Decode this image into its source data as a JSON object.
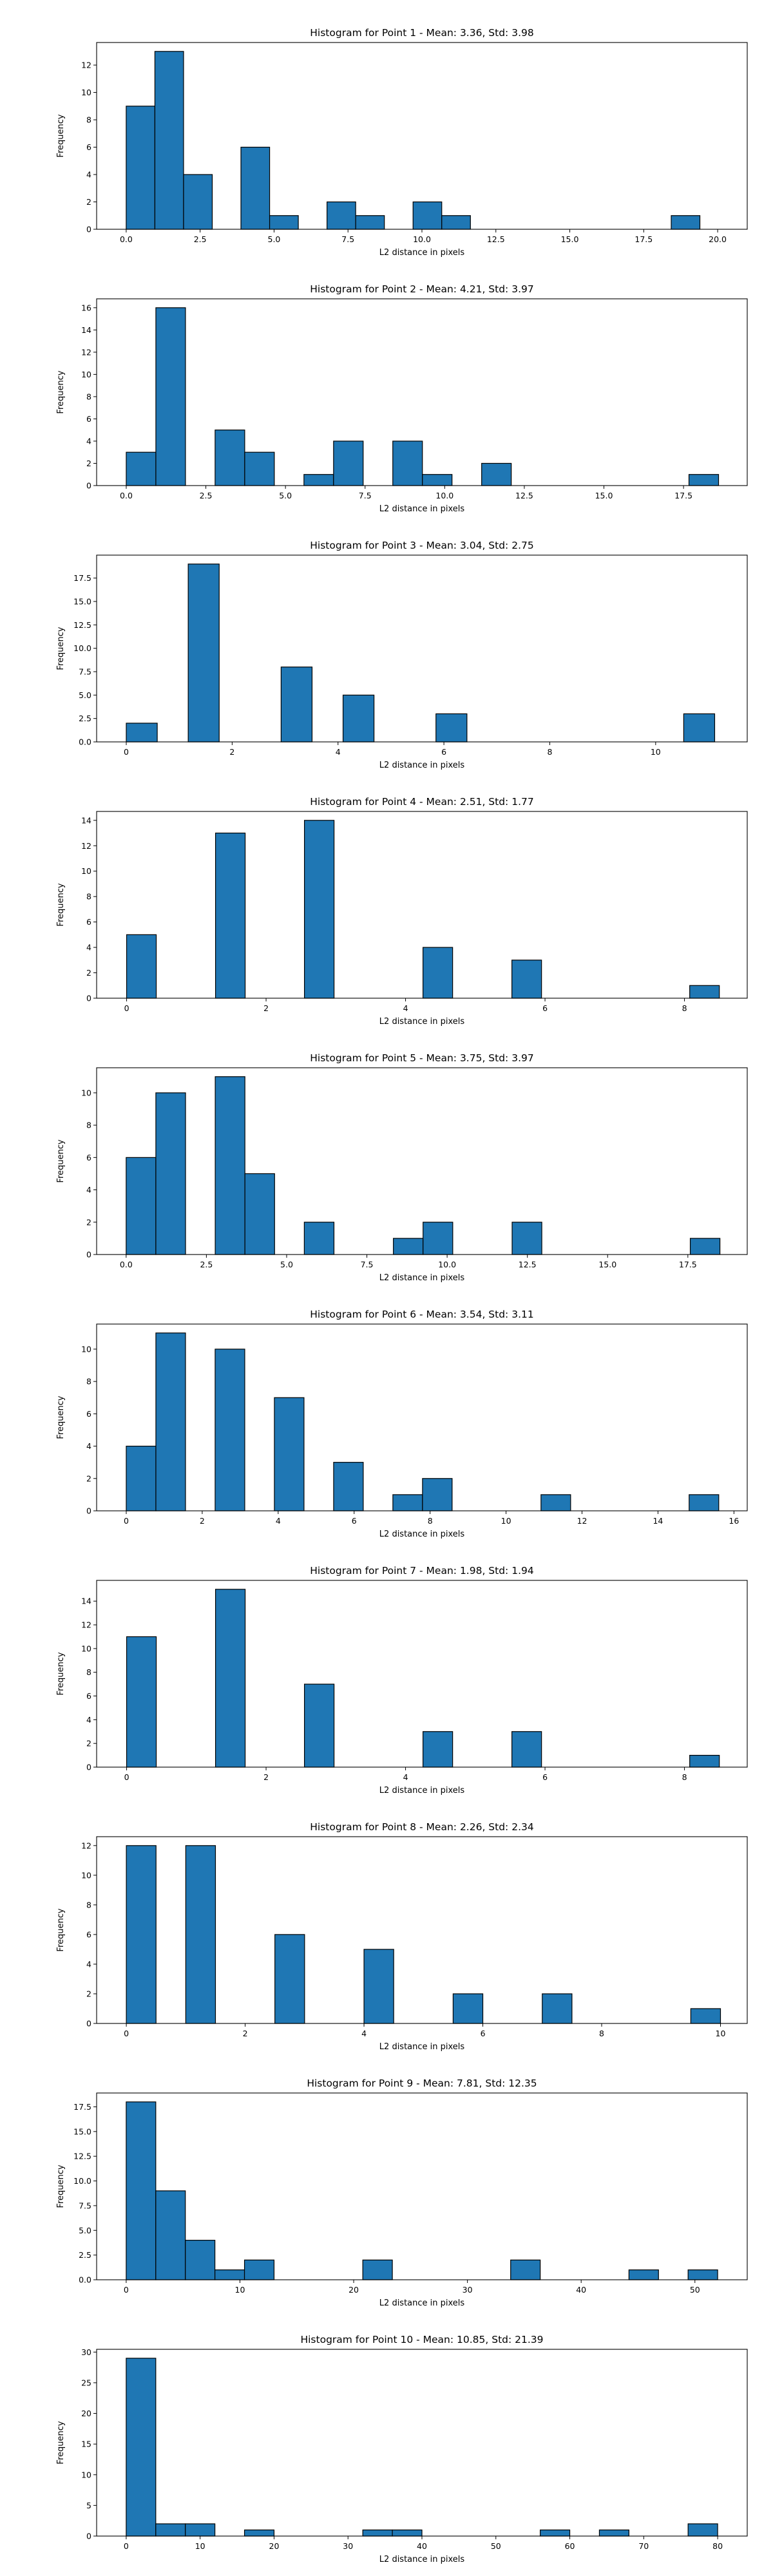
{
  "figure": {
    "background": "#ffffff",
    "bar_color": "#1f77b4",
    "edge_color": "#000000"
  },
  "chart_data": [
    {
      "type": "bar",
      "title": "Histogram for Point 1 - Mean: 3.36, Std: 3.98",
      "xlabel": "L2 distance in pixels",
      "ylabel": "Frequency",
      "xlim": [
        -1,
        21
      ],
      "ylim": [
        0,
        13.65
      ],
      "xticks": [
        0,
        2.5,
        5,
        7.5,
        10,
        12.5,
        15,
        17.5,
        20
      ],
      "xtick_labels": [
        "0.0",
        "2.5",
        "5.0",
        "7.5",
        "10.0",
        "12.5",
        "15.0",
        "17.5",
        "20.0"
      ],
      "yticks": [
        0,
        2,
        4,
        6,
        8,
        10,
        12
      ],
      "ytick_labels": [
        "0",
        "2",
        "4",
        "6",
        "8",
        "10",
        "12"
      ],
      "bins": [
        {
          "x0": 0,
          "x1": 0.97,
          "count": 9
        },
        {
          "x0": 0.97,
          "x1": 1.94,
          "count": 13
        },
        {
          "x0": 1.94,
          "x1": 2.91,
          "count": 4
        },
        {
          "x0": 3.88,
          "x1": 4.85,
          "count": 6
        },
        {
          "x0": 4.85,
          "x1": 5.82,
          "count": 1
        },
        {
          "x0": 6.79,
          "x1": 7.76,
          "count": 2
        },
        {
          "x0": 7.76,
          "x1": 8.73,
          "count": 1
        },
        {
          "x0": 9.7,
          "x1": 10.67,
          "count": 2
        },
        {
          "x0": 10.67,
          "x1": 11.64,
          "count": 1
        },
        {
          "x0": 18.43,
          "x1": 19.4,
          "count": 1
        }
      ]
    },
    {
      "type": "bar",
      "title": "Histogram for Point 2 - Mean: 4.21, Std: 3.97",
      "xlabel": "L2 distance in pixels",
      "ylabel": "Frequency",
      "xlim": [
        -0.93,
        19.5
      ],
      "ylim": [
        0,
        16.8
      ],
      "xticks": [
        0,
        2.5,
        5,
        7.5,
        10,
        12.5,
        15,
        17.5
      ],
      "xtick_labels": [
        "0.0",
        "2.5",
        "5.0",
        "7.5",
        "10.0",
        "12.5",
        "15.0",
        "17.5"
      ],
      "yticks": [
        0,
        2,
        4,
        6,
        8,
        10,
        12,
        14,
        16
      ],
      "ytick_labels": [
        "0",
        "2",
        "4",
        "6",
        "8",
        "10",
        "12",
        "14",
        "16"
      ],
      "bins": [
        {
          "x0": 0,
          "x1": 0.93,
          "count": 3
        },
        {
          "x0": 0.93,
          "x1": 1.86,
          "count": 16
        },
        {
          "x0": 2.79,
          "x1": 3.72,
          "count": 5
        },
        {
          "x0": 3.72,
          "x1": 4.65,
          "count": 3
        },
        {
          "x0": 5.58,
          "x1": 6.51,
          "count": 1
        },
        {
          "x0": 6.51,
          "x1": 7.44,
          "count": 4
        },
        {
          "x0": 8.37,
          "x1": 9.3,
          "count": 4
        },
        {
          "x0": 9.3,
          "x1": 10.23,
          "count": 1
        },
        {
          "x0": 11.16,
          "x1": 12.09,
          "count": 2
        },
        {
          "x0": 17.67,
          "x1": 18.6,
          "count": 1
        }
      ]
    },
    {
      "type": "bar",
      "title": "Histogram for Point 3 - Mean: 3.04, Std: 2.75",
      "xlabel": "L2 distance in pixels",
      "ylabel": "Frequency",
      "xlim": [
        -0.56,
        11.73
      ],
      "ylim": [
        0,
        19.95
      ],
      "xticks": [
        0,
        2,
        4,
        6,
        8,
        10
      ],
      "xtick_labels": [
        "0",
        "2",
        "4",
        "6",
        "8",
        "10"
      ],
      "yticks": [
        0,
        2.5,
        5,
        7.5,
        10,
        12.5,
        15,
        17.5
      ],
      "ytick_labels": [
        "0.0",
        "2.5",
        "5.0",
        "7.5",
        "10.0",
        "12.5",
        "15.0",
        "17.5"
      ],
      "bins": [
        {
          "x0": 0,
          "x1": 0.585,
          "count": 2
        },
        {
          "x0": 1.17,
          "x1": 1.755,
          "count": 19
        },
        {
          "x0": 2.925,
          "x1": 3.51,
          "count": 8
        },
        {
          "x0": 4.095,
          "x1": 4.68,
          "count": 5
        },
        {
          "x0": 5.85,
          "x1": 6.435,
          "count": 3
        },
        {
          "x0": 10.53,
          "x1": 11.115,
          "count": 3
        }
      ]
    },
    {
      "type": "bar",
      "title": "Histogram for Point 4 - Mean: 2.51, Std: 1.77",
      "xlabel": "L2 distance in pixels",
      "ylabel": "Frequency",
      "xlim": [
        -0.43,
        8.9
      ],
      "ylim": [
        0,
        14.7
      ],
      "xticks": [
        0,
        2,
        4,
        6,
        8
      ],
      "xtick_labels": [
        "0",
        "2",
        "4",
        "6",
        "8"
      ],
      "yticks": [
        0,
        2,
        4,
        6,
        8,
        10,
        12,
        14
      ],
      "ytick_labels": [
        "0",
        "2",
        "4",
        "6",
        "8",
        "10",
        "12",
        "14"
      ],
      "bins": [
        {
          "x0": 0,
          "x1": 0.425,
          "count": 5
        },
        {
          "x0": 1.275,
          "x1": 1.7,
          "count": 13
        },
        {
          "x0": 2.55,
          "x1": 2.975,
          "count": 14
        },
        {
          "x0": 4.25,
          "x1": 4.675,
          "count": 4
        },
        {
          "x0": 5.525,
          "x1": 5.95,
          "count": 3
        },
        {
          "x0": 8.075,
          "x1": 8.5,
          "count": 1
        }
      ]
    },
    {
      "type": "bar",
      "title": "Histogram for Point 5 - Mean: 3.75, Std: 3.97",
      "xlabel": "L2 distance in pixels",
      "ylabel": "Frequency",
      "xlim": [
        -0.92,
        19.35
      ],
      "ylim": [
        0,
        11.55
      ],
      "xticks": [
        0,
        2.5,
        5,
        7.5,
        10,
        12.5,
        15,
        17.5
      ],
      "xtick_labels": [
        "0.0",
        "2.5",
        "5.0",
        "7.5",
        "10.0",
        "12.5",
        "15.0",
        "17.5"
      ],
      "yticks": [
        0,
        2,
        4,
        6,
        8,
        10
      ],
      "ytick_labels": [
        "0",
        "2",
        "4",
        "6",
        "8",
        "10"
      ],
      "bins": [
        {
          "x0": 0,
          "x1": 0.925,
          "count": 6
        },
        {
          "x0": 0.925,
          "x1": 1.85,
          "count": 10
        },
        {
          "x0": 2.775,
          "x1": 3.7,
          "count": 11
        },
        {
          "x0": 3.7,
          "x1": 4.625,
          "count": 5
        },
        {
          "x0": 5.55,
          "x1": 6.475,
          "count": 2
        },
        {
          "x0": 8.325,
          "x1": 9.25,
          "count": 1
        },
        {
          "x0": 9.25,
          "x1": 10.175,
          "count": 2
        },
        {
          "x0": 12.025,
          "x1": 12.95,
          "count": 2
        },
        {
          "x0": 17.575,
          "x1": 18.5,
          "count": 1
        }
      ]
    },
    {
      "type": "bar",
      "title": "Histogram for Point 6 - Mean: 3.54, Std: 3.11",
      "xlabel": "L2 distance in pixels",
      "ylabel": "Frequency",
      "xlim": [
        -0.78,
        16.35
      ],
      "ylim": [
        0,
        11.55
      ],
      "xticks": [
        0,
        2,
        4,
        6,
        8,
        10,
        12,
        14,
        16
      ],
      "xtick_labels": [
        "0",
        "2",
        "4",
        "6",
        "8",
        "10",
        "12",
        "14",
        "16"
      ],
      "yticks": [
        0,
        2,
        4,
        6,
        8,
        10
      ],
      "ytick_labels": [
        "0",
        "2",
        "4",
        "6",
        "8",
        "10"
      ],
      "bins": [
        {
          "x0": 0,
          "x1": 0.78,
          "count": 4
        },
        {
          "x0": 0.78,
          "x1": 1.56,
          "count": 11
        },
        {
          "x0": 2.34,
          "x1": 3.12,
          "count": 10
        },
        {
          "x0": 3.9,
          "x1": 4.68,
          "count": 7
        },
        {
          "x0": 5.46,
          "x1": 6.24,
          "count": 3
        },
        {
          "x0": 7.02,
          "x1": 7.8,
          "count": 1
        },
        {
          "x0": 7.8,
          "x1": 8.58,
          "count": 2
        },
        {
          "x0": 10.92,
          "x1": 11.7,
          "count": 1
        },
        {
          "x0": 14.82,
          "x1": 15.6,
          "count": 1
        }
      ]
    },
    {
      "type": "bar",
      "title": "Histogram for Point 7 - Mean: 1.98, Std: 1.94",
      "xlabel": "L2 distance in pixels",
      "ylabel": "Frequency",
      "xlim": [
        -0.43,
        8.9
      ],
      "ylim": [
        0,
        15.75
      ],
      "xticks": [
        0,
        2,
        4,
        6,
        8
      ],
      "xtick_labels": [
        "0",
        "2",
        "4",
        "6",
        "8"
      ],
      "yticks": [
        0,
        2,
        4,
        6,
        8,
        10,
        12,
        14
      ],
      "ytick_labels": [
        "0",
        "2",
        "4",
        "6",
        "8",
        "10",
        "12",
        "14"
      ],
      "bins": [
        {
          "x0": 0,
          "x1": 0.425,
          "count": 11
        },
        {
          "x0": 1.275,
          "x1": 1.7,
          "count": 15
        },
        {
          "x0": 2.55,
          "x1": 2.975,
          "count": 7
        },
        {
          "x0": 4.25,
          "x1": 4.675,
          "count": 3
        },
        {
          "x0": 5.525,
          "x1": 5.95,
          "count": 3
        },
        {
          "x0": 8.075,
          "x1": 8.5,
          "count": 1
        }
      ]
    },
    {
      "type": "bar",
      "title": "Histogram for Point 8 - Mean: 2.26, Std: 2.34",
      "xlabel": "L2 distance in pixels",
      "ylabel": "Frequency",
      "xlim": [
        -0.5,
        10.45
      ],
      "ylim": [
        0,
        12.6
      ],
      "xticks": [
        0,
        2,
        4,
        6,
        8,
        10
      ],
      "xtick_labels": [
        "0",
        "2",
        "4",
        "6",
        "8",
        "10"
      ],
      "yticks": [
        0,
        2,
        4,
        6,
        8,
        10,
        12
      ],
      "ytick_labels": [
        "0",
        "2",
        "4",
        "6",
        "8",
        "10",
        "12"
      ],
      "bins": [
        {
          "x0": 0,
          "x1": 0.5,
          "count": 12
        },
        {
          "x0": 1,
          "x1": 1.5,
          "count": 12
        },
        {
          "x0": 2.5,
          "x1": 3,
          "count": 6
        },
        {
          "x0": 4,
          "x1": 4.5,
          "count": 5
        },
        {
          "x0": 5.5,
          "x1": 6,
          "count": 2
        },
        {
          "x0": 7,
          "x1": 7.5,
          "count": 2
        },
        {
          "x0": 9.5,
          "x1": 10,
          "count": 1
        }
      ]
    },
    {
      "type": "bar",
      "title": "Histogram for Point 9 - Mean: 7.81, Std: 12.35",
      "xlabel": "L2 distance in pixels",
      "ylabel": "Frequency",
      "xlim": [
        -2.6,
        54.6
      ],
      "ylim": [
        0,
        18.9
      ],
      "xticks": [
        0,
        10,
        20,
        30,
        40,
        50
      ],
      "xtick_labels": [
        "0",
        "10",
        "20",
        "30",
        "40",
        "50"
      ],
      "yticks": [
        0,
        2.5,
        5,
        7.5,
        10,
        12.5,
        15,
        17.5
      ],
      "ytick_labels": [
        "0.0",
        "2.5",
        "5.0",
        "7.5",
        "10.0",
        "12.5",
        "15.0",
        "17.5"
      ],
      "bins": [
        {
          "x0": 0,
          "x1": 2.6,
          "count": 18
        },
        {
          "x0": 2.6,
          "x1": 5.2,
          "count": 9
        },
        {
          "x0": 5.2,
          "x1": 7.8,
          "count": 4
        },
        {
          "x0": 7.8,
          "x1": 10.4,
          "count": 1
        },
        {
          "x0": 10.4,
          "x1": 13,
          "count": 2
        },
        {
          "x0": 20.8,
          "x1": 23.4,
          "count": 2
        },
        {
          "x0": 33.8,
          "x1": 36.4,
          "count": 2
        },
        {
          "x0": 44.2,
          "x1": 46.8,
          "count": 1
        },
        {
          "x0": 49.4,
          "x1": 52,
          "count": 1
        }
      ]
    },
    {
      "type": "bar",
      "title": "Histogram for Point 10 - Mean: 10.85, Std: 21.39",
      "xlabel": "L2 distance in pixels",
      "ylabel": "Frequency",
      "xlim": [
        -4,
        84
      ],
      "ylim": [
        0,
        30.45
      ],
      "xticks": [
        0,
        10,
        20,
        30,
        40,
        50,
        60,
        70,
        80
      ],
      "xtick_labels": [
        "0",
        "10",
        "20",
        "30",
        "40",
        "50",
        "60",
        "70",
        "80"
      ],
      "yticks": [
        0,
        5,
        10,
        15,
        20,
        25,
        30
      ],
      "ytick_labels": [
        "0",
        "5",
        "10",
        "15",
        "20",
        "25",
        "30"
      ],
      "bins": [
        {
          "x0": 0,
          "x1": 4,
          "count": 29
        },
        {
          "x0": 4,
          "x1": 8,
          "count": 2
        },
        {
          "x0": 8,
          "x1": 12,
          "count": 2
        },
        {
          "x0": 16,
          "x1": 20,
          "count": 1
        },
        {
          "x0": 32,
          "x1": 36,
          "count": 1
        },
        {
          "x0": 36,
          "x1": 40,
          "count": 1
        },
        {
          "x0": 56,
          "x1": 60,
          "count": 1
        },
        {
          "x0": 64,
          "x1": 68,
          "count": 1
        },
        {
          "x0": 76,
          "x1": 80,
          "count": 2
        }
      ]
    }
  ]
}
